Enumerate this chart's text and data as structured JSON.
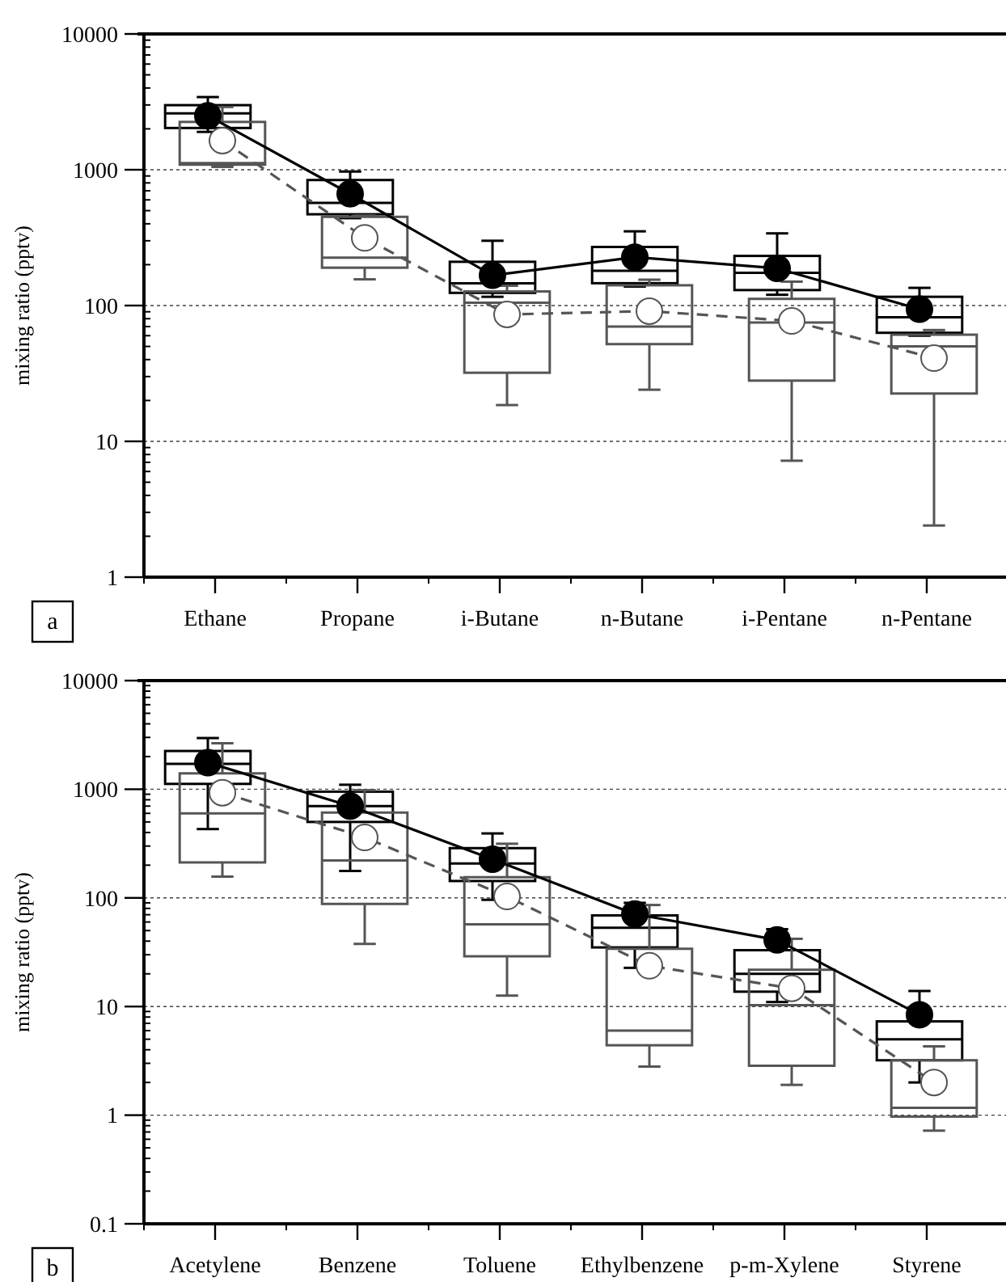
{
  "chart_data": [
    {
      "type": "box",
      "ylabel": "mixing ratio (pptv)",
      "annotations": [
        "a"
      ],
      "categories": [
        "Ethane",
        "Propane",
        "i-Butane",
        "n-Butane",
        "i-Pentane",
        "n-Pentane"
      ],
      "log": "y",
      "ylim": [
        1,
        10000
      ],
      "yticks": [
        1,
        10,
        100,
        1000,
        10000
      ],
      "grid": "y",
      "series": [
        {
          "color": "#000000",
          "boxes": [
            {
              "low": 1900,
              "q1": 2030,
              "median": 2600,
              "q3": 2990,
              "high": 3430
            },
            {
              "low": 440,
              "q1": 470,
              "median": 570,
              "q3": 840,
              "high": 970
            },
            {
              "low": 116,
              "q1": 124,
              "median": 146,
              "q3": 210,
              "high": 300
            },
            {
              "low": 138,
              "q1": 146,
              "median": 180,
              "q3": 270,
              "high": 352
            },
            {
              "low": 120,
              "q1": 130,
              "median": 174,
              "q3": 232,
              "high": 340
            },
            {
              "low": 60,
              "q1": 63,
              "median": 82,
              "q3": 116,
              "high": 135
            }
          ]
        },
        {
          "color": "#555555",
          "boxes": [
            {
              "low": 1050,
              "q1": 1090,
              "median": 1120,
              "q3": 2250,
              "high": 2900
            },
            {
              "low": 156,
              "q1": 190,
              "median": 225,
              "q3": 450,
              "high": 460
            },
            {
              "low": 18.5,
              "q1": 32,
              "median": 105,
              "q3": 127,
              "high": 140
            },
            {
              "low": 24,
              "q1": 52,
              "median": 70,
              "q3": 141,
              "high": 155
            },
            {
              "low": 7.2,
              "q1": 28,
              "median": 75,
              "q3": 112,
              "high": 150
            },
            {
              "low": 2.4,
              "q1": 22.5,
              "median": 50,
              "q3": 61,
              "high": 66
            }
          ]
        },
        {
          "type": "line",
          "color": "#000000",
          "marker": "circle",
          "line_style": "solid",
          "values": [
            2500,
            665,
            167,
            227,
            188,
            94
          ]
        },
        {
          "type": "line",
          "color": "#555555",
          "marker": "circle",
          "line_style": "dashed",
          "values": [
            1640,
            315,
            86,
            91,
            77,
            41
          ]
        }
      ]
    },
    {
      "type": "box",
      "ylabel": "mixing ratio (pptv)",
      "annotations": [
        "b"
      ],
      "categories": [
        "Acetylene",
        "Benzene",
        "Toluene",
        "Ethylbenzene",
        "p-m-Xylene",
        "Styrene"
      ],
      "log": "y",
      "ylim": [
        0.1,
        10000
      ],
      "yticks": [
        0.1,
        1,
        10,
        100,
        1000,
        10000
      ],
      "grid": "y",
      "series": [
        {
          "color": "#000000",
          "boxes": [
            {
              "low": 430,
              "q1": 1120,
              "median": 1710,
              "q3": 2250,
              "high": 2960
            },
            {
              "low": 177,
              "q1": 500,
              "median": 700,
              "q3": 950,
              "high": 1100
            },
            {
              "low": 96,
              "q1": 143,
              "median": 207,
              "q3": 287,
              "high": 392
            },
            {
              "low": 22.7,
              "q1": 35,
              "median": 53,
              "q3": 69,
              "high": 90
            },
            {
              "low": 11,
              "q1": 13.7,
              "median": 20,
              "q3": 33,
              "high": 51.5
            },
            {
              "low": 2,
              "q1": 3.2,
              "median": 5,
              "q3": 7.3,
              "high": 13.9
            }
          ]
        },
        {
          "color": "#555555",
          "boxes": [
            {
              "low": 157,
              "q1": 212,
              "median": 600,
              "q3": 1400,
              "high": 2650
            },
            {
              "low": 37.7,
              "q1": 88,
              "median": 221,
              "q3": 610,
              "high": 980
            },
            {
              "low": 12.6,
              "q1": 29,
              "median": 57,
              "q3": 155,
              "high": 315
            },
            {
              "low": 2.8,
              "q1": 4.4,
              "median": 6,
              "q3": 34,
              "high": 86
            },
            {
              "low": 1.9,
              "q1": 2.85,
              "median": 10.3,
              "q3": 21.8,
              "high": 42
            },
            {
              "low": 0.72,
              "q1": 0.97,
              "median": 1.17,
              "q3": 3.2,
              "high": 4.3
            }
          ]
        },
        {
          "type": "line",
          "color": "#000000",
          "marker": "circle",
          "line_style": "solid",
          "values": [
            1760,
            700,
            227,
            71,
            41,
            8.4
          ]
        },
        {
          "type": "line",
          "color": "#555555",
          "marker": "circle",
          "line_style": "dashed",
          "values": [
            930,
            360,
            103,
            23.7,
            14.7,
            2.0
          ]
        }
      ]
    }
  ]
}
